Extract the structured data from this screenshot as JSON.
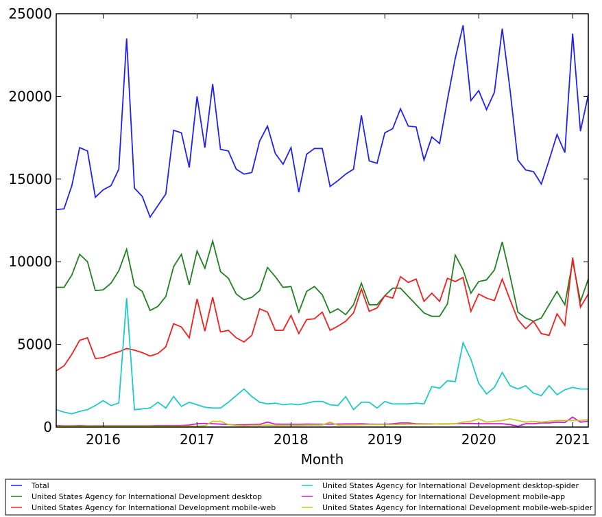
{
  "chart_data": {
    "type": "line",
    "xlabel": "Month",
    "ylabel": "",
    "ylim": [
      0,
      25000
    ],
    "yticks": [
      0,
      5000,
      10000,
      15000,
      20000,
      25000
    ],
    "xticks": [
      {
        "label": "2016",
        "value": 2016.0
      },
      {
        "label": "2017",
        "value": 2017.0
      },
      {
        "label": "2018",
        "value": 2018.0
      },
      {
        "label": "2019",
        "value": 2019.0
      },
      {
        "label": "2020",
        "value": 2020.0
      },
      {
        "label": "2021",
        "value": 2021.0
      }
    ],
    "x_start": 2015.5,
    "x_step": 0.08333,
    "legend_position": "below plot",
    "series": [
      {
        "name": "Total",
        "color": "#2020f0",
        "values": [
          13150,
          13200,
          14600,
          16900,
          16700,
          13900,
          14350,
          14600,
          15600,
          23500,
          14450,
          13950,
          12700,
          13400,
          14100,
          17950,
          17800,
          15700,
          20000,
          16900,
          20750,
          16800,
          16700,
          15600,
          15300,
          15400,
          17300,
          18200,
          16550,
          15900,
          16900,
          14200,
          16500,
          16850,
          16850,
          14550,
          14900,
          15300,
          15600,
          18850,
          16100,
          15950,
          17800,
          18050,
          19250,
          18200,
          18150,
          16150,
          17550,
          17150,
          19800,
          22300,
          24300,
          19750,
          20350,
          19200,
          20250,
          24100,
          20400,
          16150,
          15550,
          15450,
          14700,
          16150,
          17700,
          16600,
          23800,
          17900,
          20100
        ]
      },
      {
        "name": "United States Agency for International Development desktop",
        "color": "#208020",
        "values": [
          8450,
          8450,
          9200,
          10450,
          10000,
          8250,
          8300,
          8700,
          9450,
          10750,
          8550,
          8200,
          7050,
          7300,
          7900,
          9700,
          10450,
          8600,
          10650,
          9600,
          11250,
          9400,
          9000,
          8050,
          7700,
          7850,
          8250,
          9650,
          9100,
          8450,
          8500,
          6950,
          8200,
          8500,
          8000,
          6900,
          7150,
          6800,
          7400,
          8700,
          7400,
          7400,
          7950,
          8400,
          8400,
          7900,
          7400,
          6900,
          6700,
          6700,
          7450,
          10400,
          9500,
          8100,
          8800,
          8900,
          9500,
          11200,
          9150,
          6950,
          6600,
          6400,
          6600,
          7400,
          8200,
          7400,
          10050,
          7600,
          8950
        ]
      },
      {
        "name": "United States Agency for International Development mobile-web",
        "color": "#f02020",
        "values": [
          3400,
          3700,
          4400,
          5250,
          5400,
          4150,
          4200,
          4400,
          4550,
          4750,
          4650,
          4500,
          4300,
          4450,
          4850,
          6250,
          6050,
          5400,
          7750,
          5800,
          7850,
          5750,
          5850,
          5400,
          5150,
          5550,
          7150,
          6950,
          5850,
          5850,
          6750,
          5650,
          6500,
          6550,
          6950,
          5850,
          6100,
          6400,
          6900,
          8350,
          7000,
          7200,
          7950,
          7800,
          9100,
          8750,
          8950,
          7600,
          8100,
          7600,
          9000,
          8800,
          9050,
          7000,
          8050,
          7800,
          7650,
          8950,
          7700,
          6500,
          5950,
          6400,
          5650,
          5550,
          6850,
          6150,
          10250,
          7250,
          8050
        ]
      },
      {
        "name": "United States Agency for International Development desktop-spider",
        "color": "#20c8c8",
        "values": [
          1050,
          900,
          800,
          950,
          1050,
          1300,
          1600,
          1300,
          1450,
          7800,
          1050,
          1100,
          1150,
          1500,
          1150,
          1850,
          1250,
          1500,
          1350,
          1200,
          1150,
          1150,
          1500,
          1900,
          2300,
          1850,
          1500,
          1400,
          1450,
          1350,
          1400,
          1350,
          1450,
          1550,
          1550,
          1350,
          1300,
          1850,
          1050,
          1500,
          1500,
          1150,
          1550,
          1400,
          1400,
          1400,
          1450,
          1400,
          2450,
          2350,
          2800,
          2750,
          5100,
          4100,
          2650,
          2000,
          2400,
          3300,
          2500,
          2300,
          2500,
          2050,
          1900,
          2500,
          1950,
          2250,
          2400,
          2300,
          2300
        ]
      },
      {
        "name": "United States Agency for International Development mobile-app",
        "color": "#d020d0",
        "values": [
          100,
          80,
          80,
          90,
          70,
          80,
          80,
          80,
          80,
          80,
          80,
          80,
          80,
          90,
          90,
          90,
          100,
          120,
          200,
          220,
          200,
          180,
          150,
          130,
          140,
          150,
          160,
          300,
          180,
          170,
          170,
          160,
          180,
          170,
          170,
          180,
          180,
          190,
          190,
          200,
          180,
          170,
          170,
          200,
          250,
          250,
          200,
          190,
          190,
          190,
          190,
          200,
          210,
          220,
          200,
          200,
          200,
          200,
          150,
          50,
          200,
          200,
          250,
          250,
          300,
          280,
          600,
          300,
          350
        ]
      },
      {
        "name": "United States Agency for International Development mobile-web-spider",
        "color": "#c8c820",
        "values": [
          50,
          50,
          50,
          50,
          50,
          50,
          50,
          50,
          50,
          50,
          50,
          50,
          50,
          50,
          50,
          50,
          50,
          50,
          60,
          80,
          350,
          350,
          150,
          100,
          80,
          100,
          100,
          120,
          100,
          100,
          100,
          100,
          120,
          120,
          130,
          300,
          120,
          130,
          130,
          140,
          150,
          150,
          150,
          150,
          160,
          170,
          170,
          170,
          180,
          200,
          200,
          200,
          300,
          350,
          500,
          300,
          350,
          400,
          500,
          400,
          300,
          350,
          300,
          350,
          400,
          400,
          400,
          400,
          450
        ]
      }
    ]
  }
}
